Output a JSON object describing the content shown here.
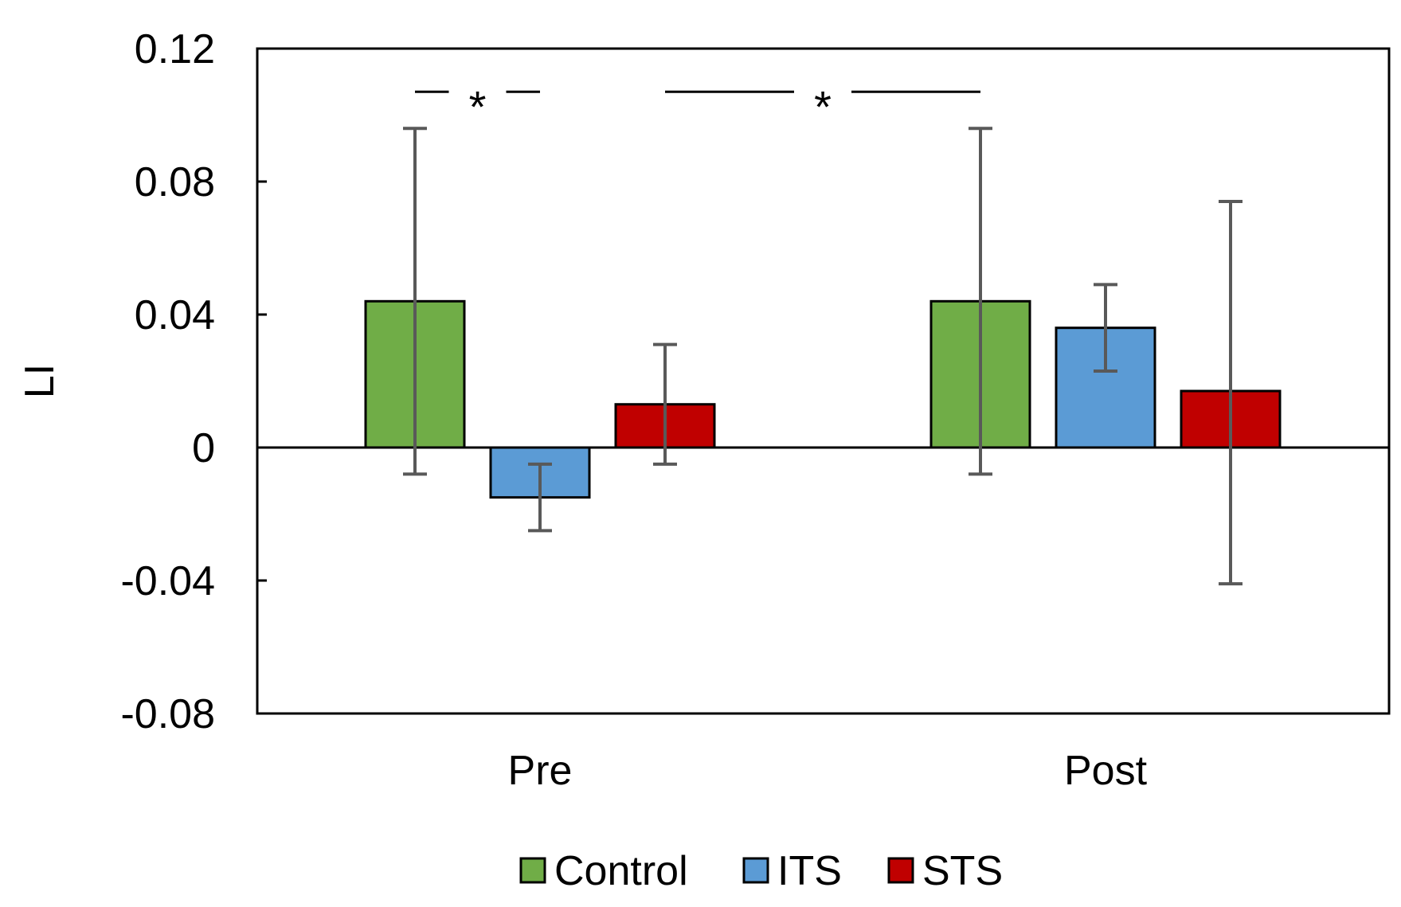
{
  "chart_data": {
    "type": "bar",
    "title": "",
    "xlabel": "",
    "ylabel": "LI",
    "ylim": [
      -0.08,
      0.12
    ],
    "yticks": [
      0.12,
      0.08,
      0.04,
      0,
      -0.04,
      -0.08
    ],
    "ytick_labels": [
      "0.12",
      "0.08",
      "0.04",
      "0",
      "-0.04",
      "-0.08"
    ],
    "categories": [
      "Pre",
      "Post"
    ],
    "series": [
      {
        "name": "Control",
        "color": "#70ad47",
        "values": [
          0.044,
          0.044
        ],
        "err_low": [
          -0.008,
          -0.008
        ],
        "err_high": [
          0.096,
          0.096
        ]
      },
      {
        "name": "ITS",
        "color": "#5b9bd5",
        "values": [
          -0.015,
          0.036
        ],
        "err_low": [
          -0.025,
          0.023
        ],
        "err_high": [
          -0.005,
          0.049
        ]
      },
      {
        "name": "STS",
        "color": "#c00000",
        "values": [
          0.013,
          0.017
        ],
        "err_low": [
          -0.005,
          -0.041
        ],
        "err_high": [
          0.031,
          0.074
        ]
      }
    ],
    "legend": {
      "position": "bottom",
      "entries": [
        "Control",
        "ITS",
        "STS"
      ]
    },
    "significance": [
      {
        "label": "*",
        "from": "Pre Control",
        "to": "Pre ITS",
        "y": 0.107
      },
      {
        "label": "*",
        "from": "Pre STS",
        "to": "Post Control",
        "y": 0.107
      }
    ],
    "grid": false
  }
}
